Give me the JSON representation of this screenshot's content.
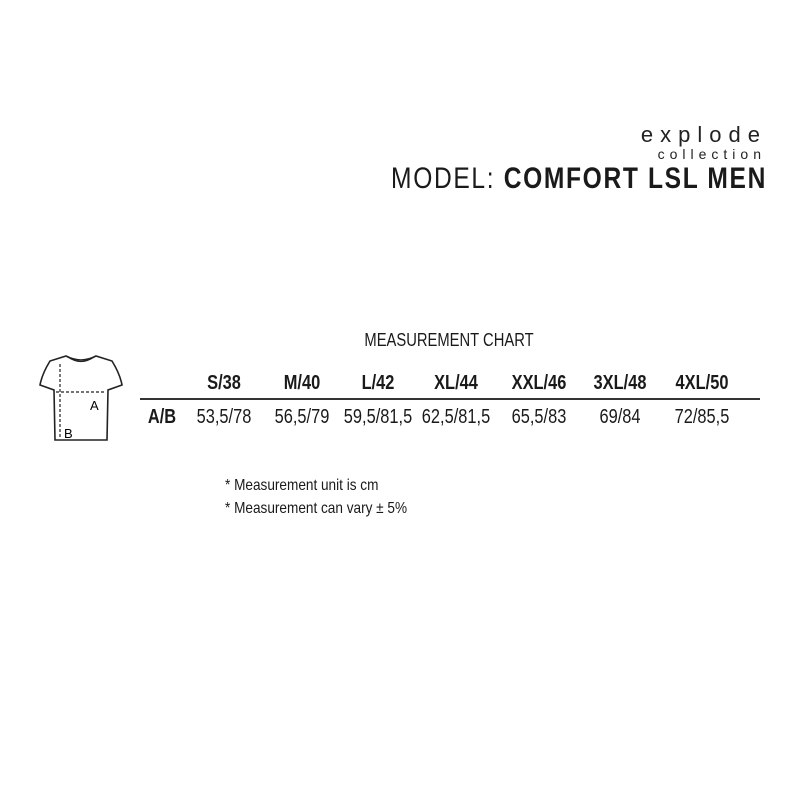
{
  "header": {
    "brand": "explode",
    "brand_sub": "collection",
    "model_label": "MODEL:",
    "model_name": "COMFORT LSL MEN"
  },
  "chart": {
    "title": "MEASUREMENT CHART",
    "row_label": "A/B",
    "sizes": [
      "S/38",
      "M/40",
      "L/42",
      "XL/44",
      "XXL/46",
      "3XL/48",
      "4XL/50"
    ],
    "values": [
      "53,5/78",
      "56,5/79",
      "59,5/81,5",
      "62,5/81,5",
      "65,5/83",
      "69/84",
      "72/85,5"
    ]
  },
  "diagram": {
    "label_a": "A",
    "label_b": "B"
  },
  "notes": [
    "* Measurement unit is cm",
    "* Measurement can vary ± 5%"
  ]
}
